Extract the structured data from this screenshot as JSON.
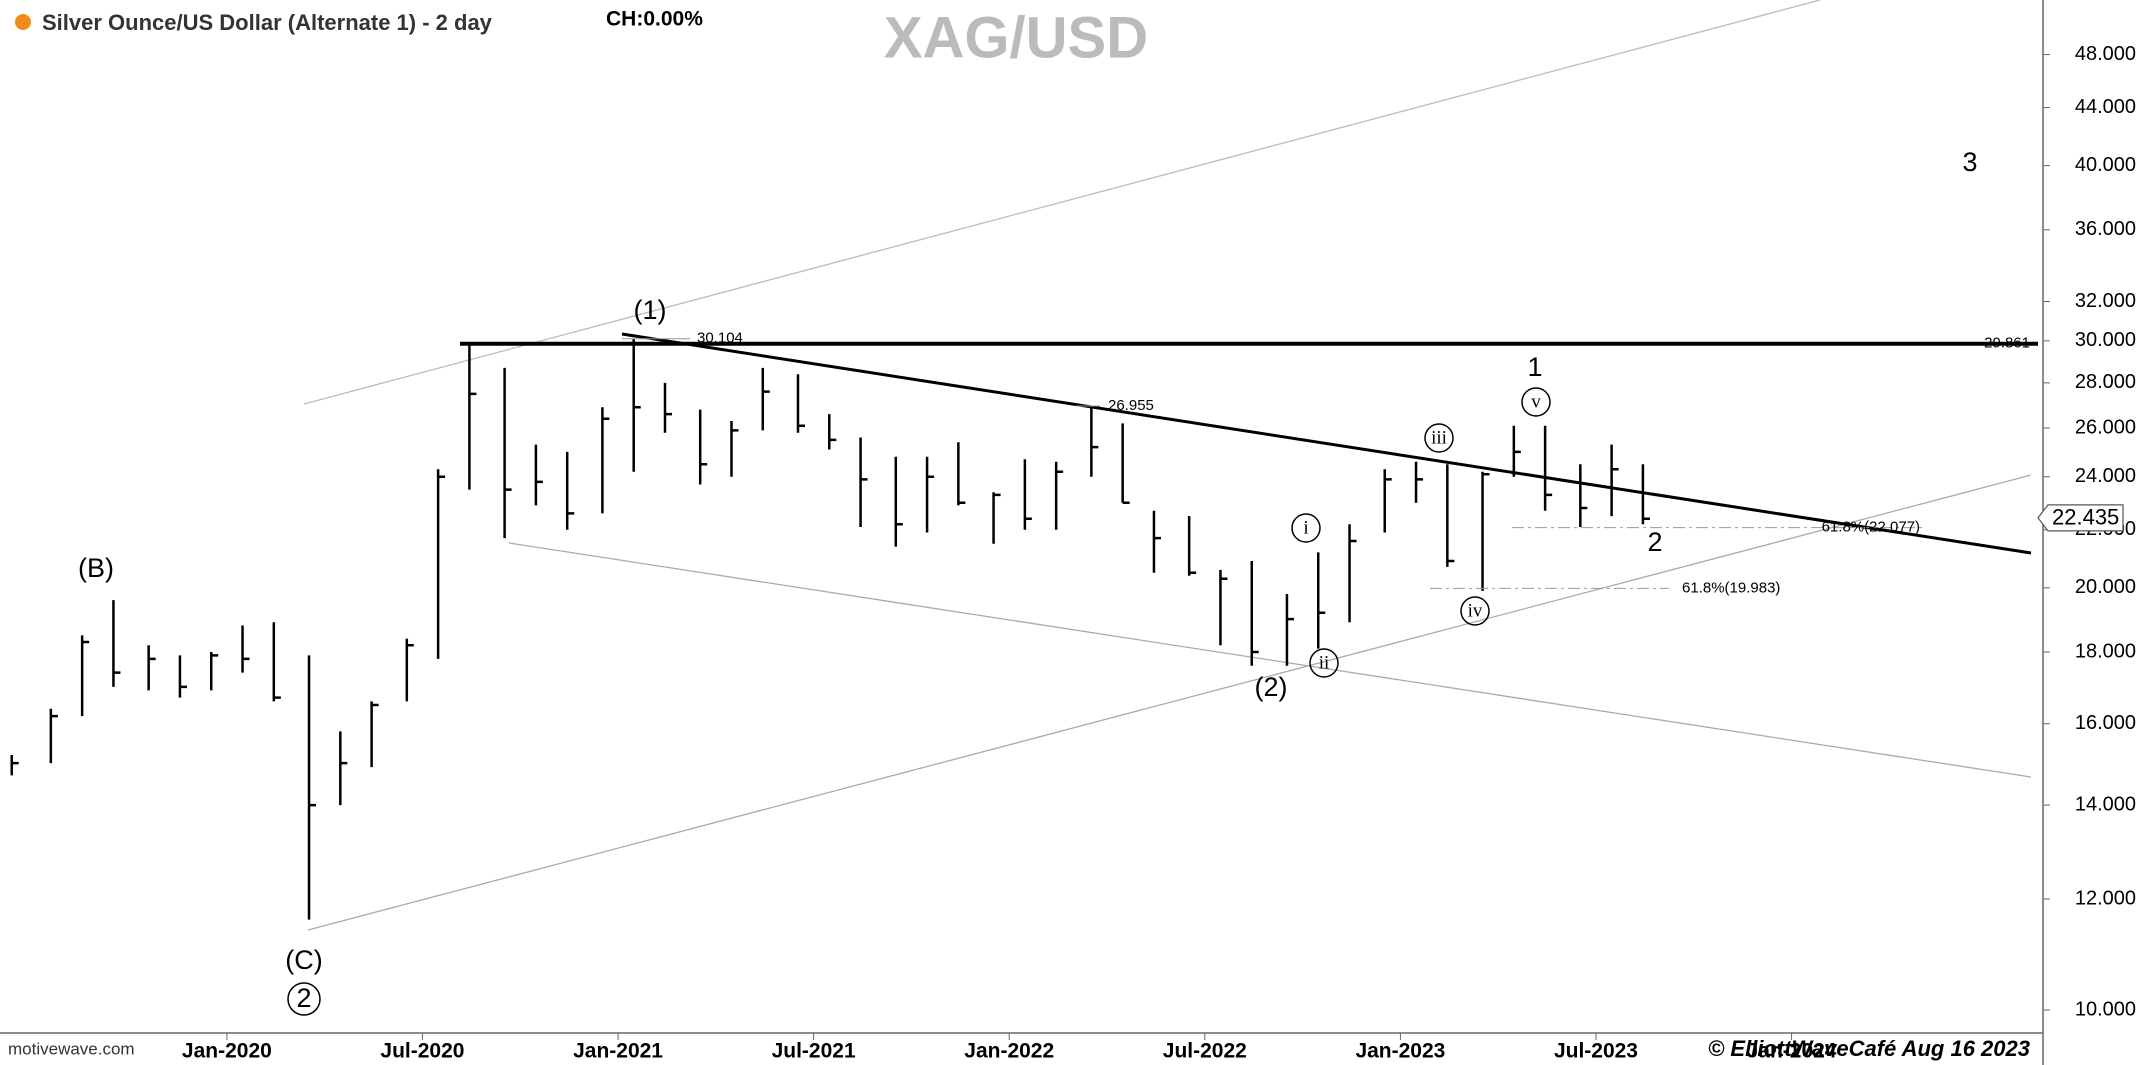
{
  "chart_data": {
    "type": "ohlc",
    "title": "Silver Ounce/US Dollar (Alternate 1) - 2 day",
    "change": "CH:0.00%",
    "watermark": "XAG/USD",
    "source": "motivewave.com",
    "copyright": "© ElliottWaveCafé Aug 16 2023",
    "color": "#000000",
    "log_scale": true,
    "x": [
      2019.45,
      2019.55,
      2019.63,
      2019.71,
      2019.8,
      2019.88,
      2019.96,
      2020.04,
      2020.12,
      2020.21,
      2020.29,
      2020.37,
      2020.46,
      2020.54,
      2020.62,
      2020.71,
      2020.79,
      2020.87,
      2020.96,
      2021.04,
      2021.12,
      2021.21,
      2021.29,
      2021.37,
      2021.46,
      2021.54,
      2021.62,
      2021.71,
      2021.79,
      2021.87,
      2021.96,
      2022.04,
      2022.12,
      2022.21,
      2022.29,
      2022.37,
      2022.46,
      2022.54,
      2022.62,
      2022.71,
      2022.79,
      2022.87,
      2022.96,
      2023.04,
      2023.12,
      2023.21,
      2023.29,
      2023.37,
      2023.46,
      2023.54,
      2023.62
    ],
    "high": [
      15.2,
      16.4,
      18.5,
      19.6,
      18.2,
      17.9,
      18.0,
      18.8,
      18.9,
      17.9,
      15.8,
      16.6,
      18.4,
      24.3,
      29.9,
      28.7,
      25.3,
      25.0,
      26.9,
      30.1,
      28.0,
      26.8,
      26.3,
      28.7,
      28.4,
      26.6,
      25.6,
      24.8,
      24.8,
      25.4,
      23.4,
      24.7,
      24.6,
      26.955,
      26.2,
      22.7,
      22.5,
      20.6,
      20.9,
      19.8,
      21.2,
      22.2,
      24.3,
      24.6,
      24.5,
      24.2,
      26.1,
      26.1,
      24.5,
      25.3,
      24.5
    ],
    "low": [
      14.7,
      15.0,
      16.2,
      17.0,
      16.9,
      16.7,
      16.9,
      17.4,
      16.6,
      11.6,
      14.0,
      14.9,
      16.6,
      17.8,
      23.5,
      21.7,
      22.9,
      22.0,
      22.6,
      24.2,
      25.8,
      23.7,
      24.0,
      25.9,
      25.8,
      25.1,
      22.1,
      21.4,
      21.9,
      22.9,
      21.5,
      22.0,
      22.0,
      24.0,
      23.0,
      20.5,
      20.4,
      18.2,
      17.6,
      17.6,
      18.1,
      18.9,
      21.9,
      23.0,
      20.7,
      19.9,
      24.0,
      22.7,
      22.1,
      22.5,
      22.2
    ],
    "close": [
      15.0,
      16.2,
      18.3,
      17.4,
      17.8,
      17.0,
      17.9,
      17.8,
      16.7,
      14.0,
      15.0,
      16.5,
      18.2,
      24.0,
      27.5,
      23.5,
      23.8,
      22.6,
      26.4,
      26.9,
      26.6,
      24.5,
      25.9,
      27.6,
      26.1,
      25.5,
      23.9,
      22.2,
      24.0,
      23.0,
      23.3,
      22.4,
      24.2,
      25.2,
      23.0,
      21.7,
      20.5,
      20.3,
      18.0,
      19.0,
      19.2,
      21.6,
      23.9,
      23.9,
      20.9,
      24.1,
      25.0,
      23.3,
      22.8,
      24.3,
      22.4
    ],
    "xlim": [
      2019.42,
      2024.63
    ],
    "xticks": [
      {
        "value": 2020.0,
        "label": "Jan-2020"
      },
      {
        "value": 2020.5,
        "label": "Jul-2020"
      },
      {
        "value": 2021.0,
        "label": "Jan-2021"
      },
      {
        "value": 2021.5,
        "label": "Jul-2021"
      },
      {
        "value": 2022.0,
        "label": "Jan-2022"
      },
      {
        "value": 2022.5,
        "label": "Jul-2022"
      },
      {
        "value": 2023.0,
        "label": "Jan-2023"
      },
      {
        "value": 2023.5,
        "label": "Jul-2023"
      },
      {
        "value": 2024.0,
        "label": "Jan-2024"
      }
    ],
    "ylim": [
      9.63,
      52.5
    ],
    "yticks": [
      {
        "value": 10,
        "label": "10.000"
      },
      {
        "value": 12,
        "label": "12.000"
      },
      {
        "value": 14,
        "label": "14.000"
      },
      {
        "value": 16,
        "label": "16.000"
      },
      {
        "value": 18,
        "label": "18.000"
      },
      {
        "value": 20,
        "label": "20.000"
      },
      {
        "value": 22,
        "label": "22.000"
      },
      {
        "value": 24,
        "label": "24.000"
      },
      {
        "value": 26,
        "label": "26.000"
      },
      {
        "value": 28,
        "label": "28.000"
      },
      {
        "value": 30,
        "label": "30.000"
      },
      {
        "value": 32,
        "label": "32.000"
      },
      {
        "value": 36,
        "label": "36.000"
      },
      {
        "value": 40,
        "label": "40.000"
      },
      {
        "value": 44,
        "label": "44.000"
      },
      {
        "value": 48,
        "label": "48.000"
      }
    ],
    "levels": [
      {
        "value": 29.861,
        "label": "29.861"
      },
      {
        "value": 30.104,
        "label": "30.104"
      },
      {
        "value": 26.955,
        "label": "26.955"
      },
      {
        "value": 22.077,
        "label": "61.8%(22.077)"
      },
      {
        "value": 19.983,
        "label": "61.8%(19.983)"
      }
    ],
    "last_price": {
      "value": 22.435,
      "label": "22.435"
    },
    "wave_labels": [
      {
        "text": "(B)",
        "circled": false
      },
      {
        "text": "(C)",
        "circled": false
      },
      {
        "text": "2",
        "circled": true
      },
      {
        "text": "(1)",
        "circled": false
      },
      {
        "text": "(2)",
        "circled": false
      },
      {
        "text": "1",
        "circled": false
      },
      {
        "text": "2",
        "circled": false
      },
      {
        "text": "3",
        "circled": false
      },
      {
        "text": "i",
        "circled": true
      },
      {
        "text": "ii",
        "circled": true
      },
      {
        "text": "iii",
        "circled": true
      },
      {
        "text": "iv",
        "circled": true
      },
      {
        "text": "v",
        "circled": true
      }
    ]
  }
}
